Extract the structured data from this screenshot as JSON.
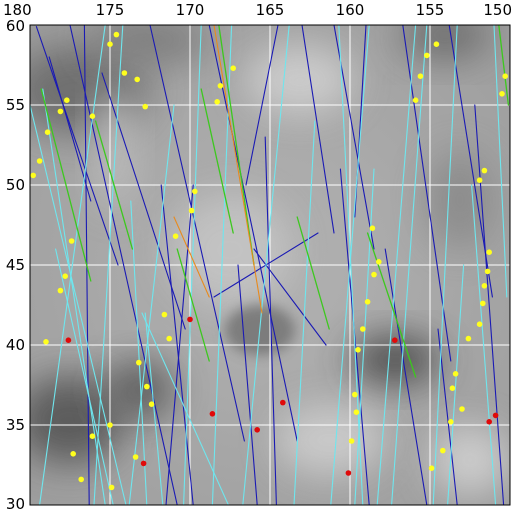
{
  "map": {
    "lon_range": [
      180,
      150
    ],
    "lat_range": [
      30,
      60
    ],
    "lon_ticks": [
      {
        "value": 180,
        "label": "180"
      },
      {
        "value": 175,
        "label": "175"
      },
      {
        "value": 170,
        "label": "170"
      },
      {
        "value": 165,
        "label": "165"
      },
      {
        "value": 160,
        "label": "160"
      },
      {
        "value": 155,
        "label": "155"
      },
      {
        "value": 150,
        "label": "150"
      }
    ],
    "lat_ticks": [
      {
        "value": 60,
        "label": "60"
      },
      {
        "value": 55,
        "label": "55"
      },
      {
        "value": 50,
        "label": "50"
      },
      {
        "value": 45,
        "label": "45"
      },
      {
        "value": 40,
        "label": "40"
      },
      {
        "value": 35,
        "label": "35"
      },
      {
        "value": 30,
        "label": "30"
      }
    ],
    "grid": true,
    "colors": {
      "grid": "#ffffff",
      "track_dark": "#1a1ab4",
      "track_light": "#6fe6ee",
      "track_green": "#3cc81e",
      "track_orange": "#e88a1e",
      "dot_yellow": "#ffff1e",
      "dot_red": "#e00a0a"
    },
    "tracks_dark": [
      [
        [
          179.6,
          59.9
        ],
        [
          174.5,
          45
        ]
      ],
      [
        [
          178.8,
          58
        ],
        [
          176.2,
          49
        ]
      ],
      [
        [
          177.5,
          60
        ],
        [
          170.8,
          30
        ]
      ],
      [
        [
          176.6,
          60
        ],
        [
          176.3,
          30
        ]
      ],
      [
        [
          175.5,
          57
        ],
        [
          170.3,
          41
        ]
      ],
      [
        [
          172.5,
          60
        ],
        [
          166.6,
          34
        ]
      ],
      [
        [
          171.8,
          50
        ],
        [
          169.8,
          30
        ]
      ],
      [
        [
          169.8,
          50
        ],
        [
          171.5,
          30
        ]
      ],
      [
        [
          168.8,
          60
        ],
        [
          163.3,
          34
        ]
      ],
      [
        [
          164.5,
          60
        ],
        [
          166.5,
          50
        ]
      ],
      [
        [
          167,
          45
        ],
        [
          165.8,
          30
        ]
      ],
      [
        [
          165.3,
          53
        ],
        [
          164.6,
          30
        ]
      ],
      [
        [
          163,
          60
        ],
        [
          161,
          47
        ]
      ],
      [
        [
          161,
          60
        ],
        [
          158.5,
          46
        ]
      ],
      [
        [
          160.6,
          51
        ],
        [
          158.8,
          30
        ]
      ],
      [
        [
          159,
          60
        ],
        [
          159.7,
          48
        ]
      ],
      [
        [
          157.8,
          46
        ],
        [
          155.2,
          30
        ]
      ],
      [
        [
          156.7,
          60
        ],
        [
          153.7,
          39
        ]
      ],
      [
        [
          153.8,
          60
        ],
        [
          151.1,
          43
        ]
      ],
      [
        [
          152.2,
          55
        ],
        [
          150.4,
          30
        ]
      ],
      [
        [
          154.5,
          41
        ],
        [
          153.3,
          30
        ]
      ],
      [
        [
          168.5,
          43
        ],
        [
          162,
          47
        ]
      ],
      [
        [
          166,
          46
        ],
        [
          161.5,
          40
        ]
      ]
    ],
    "tracks_light": [
      [
        [
          180,
          55
        ],
        [
          174,
          30
        ]
      ],
      [
        [
          179.2,
          56
        ],
        [
          175.3,
          30
        ]
      ],
      [
        [
          178.4,
          46
        ],
        [
          174.8,
          30
        ]
      ],
      [
        [
          174.2,
          60
        ],
        [
          176,
          30
        ]
      ],
      [
        [
          173.7,
          49
        ],
        [
          172.7,
          30
        ]
      ],
      [
        [
          172.8,
          42
        ],
        [
          171.7,
          30
        ]
      ],
      [
        [
          171,
          55
        ],
        [
          173.8,
          30
        ]
      ],
      [
        [
          169.3,
          60
        ],
        [
          170.4,
          30
        ]
      ],
      [
        [
          167.4,
          60
        ],
        [
          168.6,
          30
        ]
      ],
      [
        [
          163.8,
          60
        ],
        [
          166.7,
          30
        ]
      ],
      [
        [
          162.2,
          54
        ],
        [
          163.5,
          30
        ]
      ],
      [
        [
          160.7,
          60
        ],
        [
          159.2,
          30
        ]
      ],
      [
        [
          158.8,
          60
        ],
        [
          161.2,
          30
        ]
      ],
      [
        [
          158.5,
          51
        ],
        [
          159.7,
          30
        ]
      ],
      [
        [
          155.9,
          60
        ],
        [
          158.3,
          30
        ]
      ],
      [
        [
          155.2,
          60
        ],
        [
          157.4,
          30
        ]
      ],
      [
        [
          153.3,
          60
        ],
        [
          154.8,
          30
        ]
      ],
      [
        [
          152.9,
          45
        ],
        [
          153.9,
          30
        ]
      ],
      [
        [
          152.4,
          50
        ],
        [
          150.9,
          30
        ]
      ],
      [
        [
          151,
          60
        ],
        [
          150.2,
          43
        ]
      ],
      [
        [
          175.3,
          60
        ],
        [
          179.4,
          30
        ]
      ],
      [
        [
          173,
          42
        ],
        [
          167.6,
          30
        ]
      ]
    ],
    "tracks_green": [
      [
        [
          179.3,
          56
        ],
        [
          176.2,
          44
        ]
      ],
      [
        [
          175.9,
          54
        ],
        [
          173.6,
          46
        ]
      ],
      [
        [
          169.3,
          56
        ],
        [
          167.3,
          47
        ]
      ],
      [
        [
          168.2,
          60
        ],
        [
          166,
          45
        ]
      ],
      [
        [
          170.8,
          46
        ],
        [
          168.8,
          39
        ]
      ],
      [
        [
          163.3,
          48
        ],
        [
          161.3,
          41
        ]
      ],
      [
        [
          158.9,
          47
        ],
        [
          155.9,
          38
        ]
      ],
      [
        [
          150.7,
          60
        ],
        [
          150.1,
          55
        ]
      ]
    ],
    "tracks_orange": [
      [
        [
          168.5,
          60
        ],
        [
          165.5,
          42
        ]
      ],
      [
        [
          171,
          48
        ],
        [
          168.8,
          43
        ]
      ]
    ],
    "dots_yellow": [
      [
        174.6,
        59.4
      ],
      [
        175,
        58.8
      ],
      [
        173.3,
        56.6
      ],
      [
        174.1,
        57
      ],
      [
        177.7,
        55.3
      ],
      [
        178.1,
        54.6
      ],
      [
        176.1,
        54.3
      ],
      [
        178.9,
        53.3
      ],
      [
        179.4,
        51.5
      ],
      [
        179.8,
        50.6
      ],
      [
        172.8,
        54.9
      ],
      [
        177.4,
        46.5
      ],
      [
        177.8,
        44.3
      ],
      [
        178.1,
        43.4
      ],
      [
        179,
        40.2
      ],
      [
        173.2,
        38.9
      ],
      [
        172.7,
        37.4
      ],
      [
        172.4,
        36.3
      ],
      [
        175,
        35
      ],
      [
        176.1,
        34.3
      ],
      [
        177.3,
        33.2
      ],
      [
        174.9,
        31.1
      ],
      [
        176.8,
        31.6
      ],
      [
        174.1,
        29.5
      ],
      [
        171.6,
        41.9
      ],
      [
        171.3,
        40.4
      ],
      [
        170.9,
        46.8
      ],
      [
        169.9,
        48.4
      ],
      [
        169.7,
        49.6
      ],
      [
        168.3,
        55.2
      ],
      [
        168.1,
        56.2
      ],
      [
        167.3,
        57.3
      ],
      [
        158.6,
        47.3
      ],
      [
        158.2,
        45.2
      ],
      [
        158.5,
        44.4
      ],
      [
        158.9,
        42.7
      ],
      [
        159.2,
        41
      ],
      [
        159.5,
        39.7
      ],
      [
        159.7,
        36.9
      ],
      [
        159.6,
        35.8
      ],
      [
        159.9,
        34
      ],
      [
        155.9,
        55.3
      ],
      [
        155.6,
        56.8
      ],
      [
        155.2,
        58.1
      ],
      [
        154.6,
        58.8
      ],
      [
        151.9,
        50.3
      ],
      [
        151.6,
        50.9
      ],
      [
        151.3,
        45.8
      ],
      [
        151.4,
        44.6
      ],
      [
        151.6,
        43.7
      ],
      [
        151.7,
        42.6
      ],
      [
        151.9,
        41.3
      ],
      [
        152.6,
        40.4
      ],
      [
        153.4,
        38.2
      ],
      [
        153.6,
        37.3
      ],
      [
        153,
        36
      ],
      [
        153.7,
        35.2
      ],
      [
        154.2,
        33.4
      ],
      [
        154.9,
        32.3
      ],
      [
        150.3,
        56.8
      ],
      [
        150.5,
        55.7
      ],
      [
        173.4,
        33
      ]
    ],
    "dots_red": [
      [
        177.6,
        40.3
      ],
      [
        170,
        41.6
      ],
      [
        168.6,
        35.7
      ],
      [
        165.8,
        34.7
      ],
      [
        164.2,
        36.4
      ],
      [
        172.9,
        32.6
      ],
      [
        160.1,
        32
      ],
      [
        157.2,
        40.3
      ],
      [
        151.3,
        35.2
      ],
      [
        150.9,
        35.6
      ]
    ]
  }
}
